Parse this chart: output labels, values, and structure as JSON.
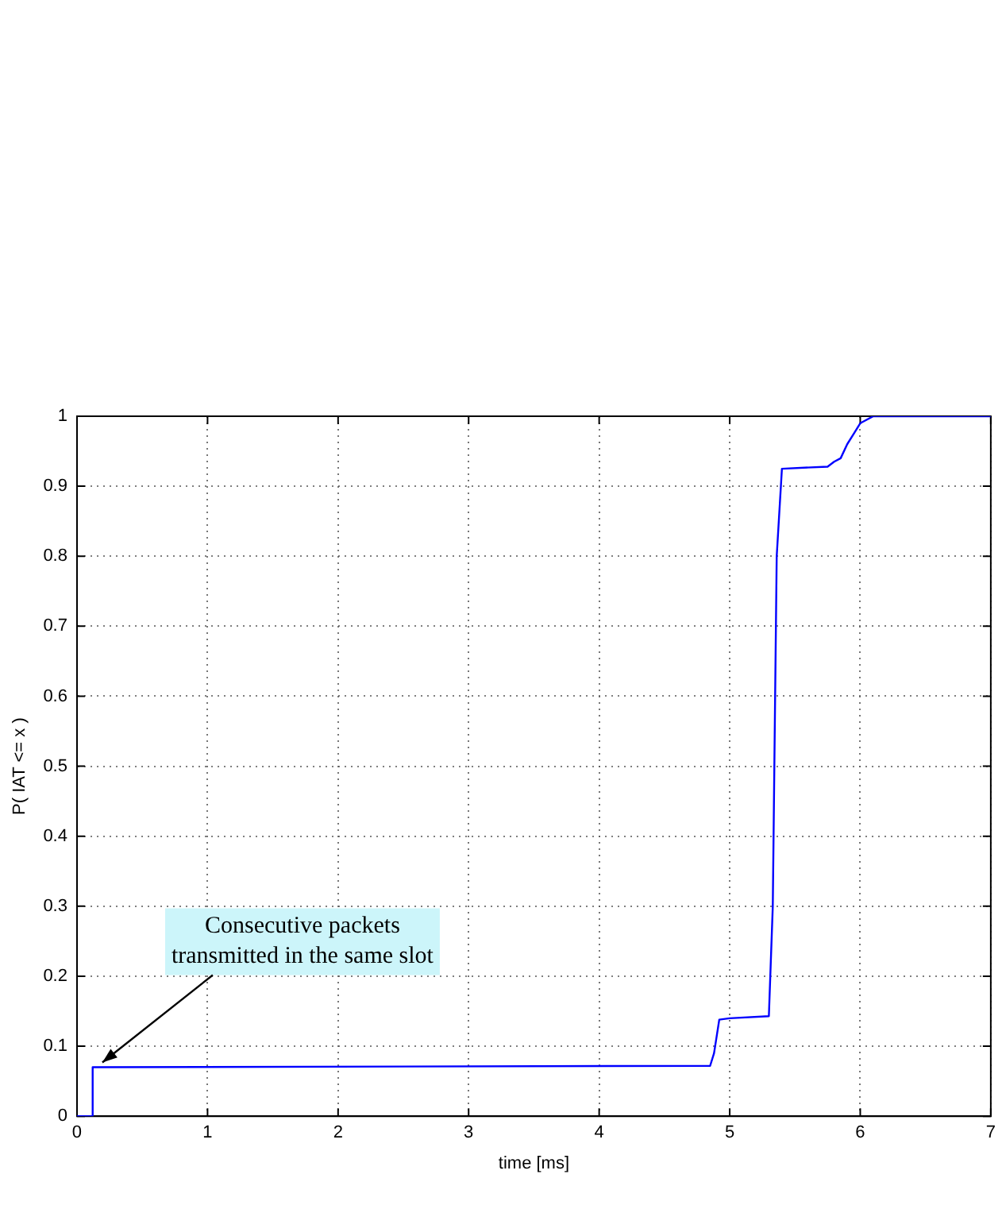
{
  "chart_data": {
    "type": "line",
    "xlabel": "time [ms]",
    "ylabel": "P( IAT <= x )",
    "x": [
      0,
      0.12,
      0.12,
      4.85,
      4.88,
      4.92,
      5.0,
      5.3,
      5.33,
      5.36,
      5.4,
      5.75,
      5.8,
      5.85,
      5.9,
      5.95,
      6.0,
      6.1,
      7
    ],
    "series": [
      {
        "color": "#0000ff",
        "values": [
          0,
          0,
          0.07,
          0.072,
          0.09,
          0.138,
          0.14,
          0.143,
          0.3,
          0.8,
          0.925,
          0.928,
          0.935,
          0.94,
          0.96,
          0.975,
          0.99,
          1,
          1
        ]
      }
    ],
    "xlim": [
      0,
      7
    ],
    "xticks": [
      0,
      1,
      2,
      3,
      4,
      5,
      6,
      7
    ],
    "ylim": [
      0,
      1
    ],
    "yticks": [
      0,
      0.1,
      0.2,
      0.3,
      0.4,
      0.5,
      0.6,
      0.7,
      0.8,
      0.9,
      1
    ],
    "grid": true,
    "legend": false,
    "marker": "none",
    "line_style": "solid",
    "annotations": [
      {
        "text": "Consecutive packets\ntransmitted in the same slot",
        "x": 0.17,
        "y": 0.07
      }
    ]
  }
}
